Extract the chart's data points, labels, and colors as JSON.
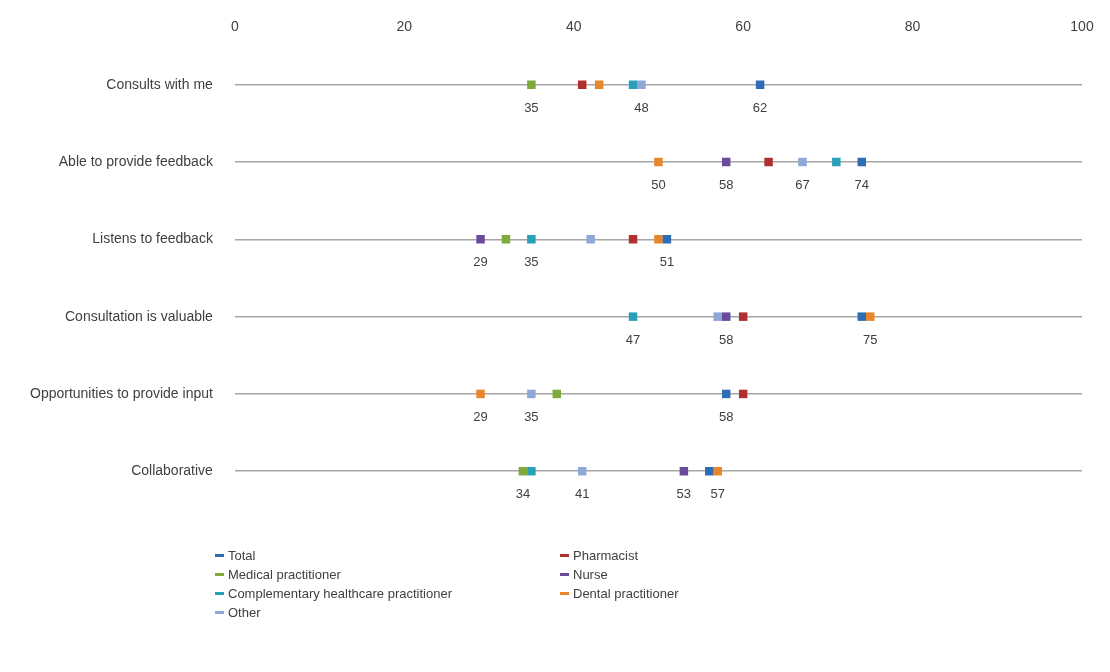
{
  "chart_data": {
    "type": "scatter",
    "orientation": "horizontal",
    "categories": [
      "Consults with me",
      "Able to provide feedback",
      "Listens to feedback",
      "Consultation is valuable",
      "Opportunities to provide input",
      "Collaborative"
    ],
    "xlim": [
      0,
      100
    ],
    "xticks": [
      0,
      20,
      40,
      60,
      80,
      100
    ],
    "grid": "y",
    "legend": "bottom",
    "marker": "square",
    "series": [
      {
        "name": "Total",
        "color": "#2e6db4",
        "values": [
          62,
          74,
          51,
          74,
          58,
          56
        ],
        "value_labels": [
          "62",
          "74",
          "51",
          null,
          "58",
          null
        ]
      },
      {
        "name": "Pharmacist",
        "color": "#b03030",
        "values": [
          41,
          63,
          47,
          60,
          60,
          null
        ],
        "value_labels": [
          null,
          null,
          null,
          null,
          null,
          null
        ]
      },
      {
        "name": "Medical practitioner",
        "color": "#7eaa3c",
        "values": [
          35,
          null,
          32,
          null,
          38,
          34
        ],
        "value_labels": [
          "35",
          null,
          null,
          null,
          null,
          "34"
        ]
      },
      {
        "name": "Nurse",
        "color": "#6a4a9a",
        "values": [
          null,
          58,
          29,
          58,
          null,
          53
        ],
        "value_labels": [
          null,
          "58",
          "29",
          "58",
          null,
          "53"
        ]
      },
      {
        "name": "Complementary healthcare practitioner",
        "color": "#2aa0b8",
        "values": [
          47,
          71,
          35,
          47,
          null,
          35
        ],
        "value_labels": [
          null,
          null,
          "35",
          "47",
          null,
          null
        ]
      },
      {
        "name": "Dental practitioner",
        "color": "#e8862a",
        "values": [
          43,
          50,
          50,
          75,
          29,
          57
        ],
        "value_labels": [
          null,
          "50",
          null,
          "75",
          "29",
          "57"
        ]
      },
      {
        "name": "Other",
        "color": "#8fa8d8",
        "values": [
          48,
          67,
          42,
          57,
          35,
          41
        ],
        "value_labels": [
          "48",
          "67",
          null,
          null,
          "35",
          "41"
        ]
      }
    ]
  }
}
